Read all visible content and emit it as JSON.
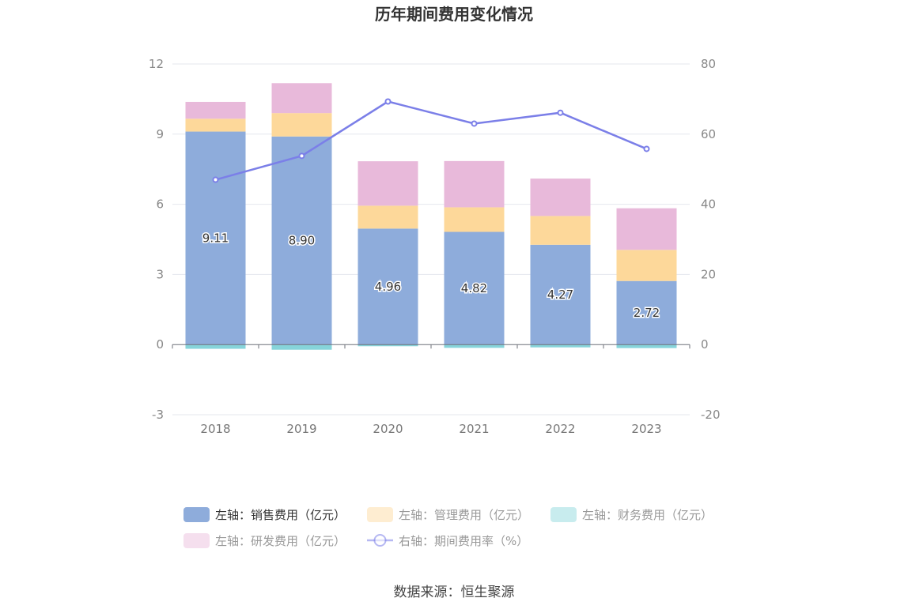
{
  "chart_data": {
    "type": "bar",
    "title": "历年期间费用变化情况",
    "categories": [
      "2018",
      "2019",
      "2020",
      "2021",
      "2022",
      "2023"
    ],
    "stacked": true,
    "series": [
      {
        "name": "左轴：销售费用（亿元）",
        "axis": "left",
        "type": "bar",
        "color": "#8eacdb",
        "values": [
          9.11,
          8.9,
          4.96,
          4.82,
          4.27,
          2.72
        ],
        "show_labels": true,
        "labels": [
          "9.11",
          "8.90",
          "4.96",
          "4.82",
          "4.27",
          "2.72"
        ]
      },
      {
        "name": "左轴：管理费用（亿元）",
        "axis": "left",
        "type": "bar",
        "color": "#fdd89a",
        "values": [
          0.55,
          1.0,
          0.98,
          1.05,
          1.23,
          1.33
        ]
      },
      {
        "name": "左轴：财务费用（亿元）",
        "axis": "left",
        "type": "bar",
        "color": "#86d4da",
        "values": [
          -0.18,
          -0.22,
          -0.07,
          -0.14,
          -0.12,
          -0.15
        ]
      },
      {
        "name": "左轴：研发费用（亿元）",
        "axis": "left",
        "type": "bar",
        "color": "#e8b9da",
        "values": [
          0.72,
          1.28,
          1.9,
          1.98,
          1.6,
          1.78
        ]
      },
      {
        "name": "右轴：期间费用率（%）",
        "axis": "right",
        "type": "line",
        "color": "#7b7fe8",
        "values": [
          47.0,
          53.8,
          69.3,
          63.0,
          66.1,
          55.8
        ]
      }
    ],
    "y_left": {
      "min": -3,
      "max": 12,
      "ticks": [
        "12",
        "9",
        "6",
        "3",
        "0",
        "-3"
      ]
    },
    "y_right": {
      "min": -20,
      "max": 80,
      "ticks": [
        "80",
        "60",
        "40",
        "20",
        "0",
        "-20"
      ]
    },
    "grid": true,
    "legend_position": "bottom",
    "legend_inactive_color": "#999999",
    "legend_active_color": "#333333"
  },
  "source_text": "数据来源：恒生聚源"
}
